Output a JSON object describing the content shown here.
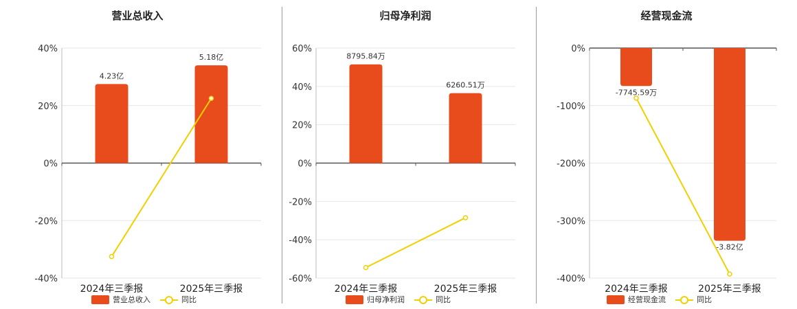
{
  "chart_data": [
    {
      "type": "bar",
      "title": "营业总收入",
      "categories": [
        "2024年三季报",
        "2025年三季报"
      ],
      "series": [
        {
          "name": "营业总收入",
          "type": "bar",
          "values": [
            27.5,
            34.0
          ],
          "labels": [
            "4.23亿",
            "5.18亿"
          ]
        },
        {
          "name": "同比",
          "type": "line",
          "values": [
            -32.5,
            22.5
          ]
        }
      ],
      "ylim": [
        -40,
        40
      ],
      "yticks": [
        "40%",
        "20%",
        "0%",
        "-20%",
        "-40%"
      ],
      "ytick_values": [
        40,
        20,
        0,
        -20,
        -40
      ]
    },
    {
      "type": "bar",
      "title": "归母净利润",
      "categories": [
        "2024年三季报",
        "2025年三季报"
      ],
      "series": [
        {
          "name": "归母净利润",
          "type": "bar",
          "values": [
            51.5,
            36.5
          ],
          "labels": [
            "8795.84万",
            "6260.51万"
          ]
        },
        {
          "name": "同比",
          "type": "line",
          "values": [
            -54.5,
            -28.5
          ]
        }
      ],
      "ylim": [
        -60,
        60
      ],
      "yticks": [
        "60%",
        "40%",
        "20%",
        "0%",
        "-20%",
        "-40%",
        "-60%"
      ],
      "ytick_values": [
        60,
        40,
        20,
        0,
        -20,
        -40,
        -60
      ]
    },
    {
      "type": "bar",
      "title": "经营现金流",
      "categories": [
        "2024年三季报",
        "2025年三季报"
      ],
      "series": [
        {
          "name": "经营现金流",
          "type": "bar",
          "values": [
            -66,
            -335
          ],
          "labels": [
            "-7745.59万",
            "-3.82亿"
          ]
        },
        {
          "name": "同比",
          "type": "line",
          "values": [
            -87,
            -393
          ]
        }
      ],
      "ylim": [
        -400,
        0
      ],
      "yticks": [
        "0%",
        "-100%",
        "-200%",
        "-300%",
        "-400%"
      ],
      "ytick_values": [
        0,
        -100,
        -200,
        -300,
        -400
      ]
    }
  ],
  "colors": {
    "bar": "#e84c1c",
    "line": "#f0d000",
    "grid": "#e6e6e6",
    "axis": "#555555"
  }
}
